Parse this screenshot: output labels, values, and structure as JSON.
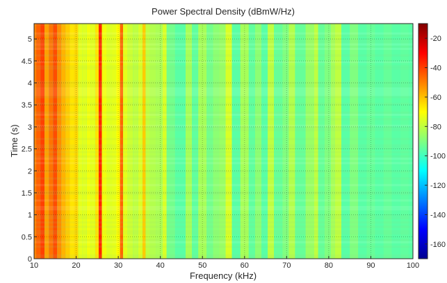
{
  "chart_data": {
    "type": "heatmap",
    "title": "Power Spectral Density (dBmW/Hz)",
    "xlabel": "Frequency (kHz)",
    "ylabel": "Time (s)",
    "xlim": [
      10,
      100
    ],
    "ylim": [
      0,
      5.35
    ],
    "xticks": [
      10,
      20,
      30,
      40,
      50,
      60,
      70,
      80,
      90,
      100
    ],
    "xtick_labels": [
      "10",
      "20",
      "30",
      "40",
      "50",
      "60",
      "70",
      "80",
      "90",
      "100"
    ],
    "yticks": [
      0,
      0.5,
      1,
      1.5,
      2,
      2.5,
      3,
      3.5,
      4,
      4.5,
      5
    ],
    "ytick_labels": [
      "0",
      "0.5",
      "1",
      "1.5",
      "2",
      "2.5",
      "3",
      "3.5",
      "4",
      "4.5",
      "5"
    ],
    "colorbar": {
      "range": [
        -170,
        -10
      ],
      "ticks": [
        -20,
        -40,
        -60,
        -80,
        -100,
        -120,
        -140,
        -160
      ],
      "tick_labels": [
        "-20",
        "-40",
        "-60",
        "-80",
        "-100",
        "-120",
        "-140",
        "-160"
      ],
      "colormap": "jet"
    },
    "grid": true,
    "background_level_db": -98,
    "frequency_profile_khz_db": [
      [
        10,
        -50
      ],
      [
        11,
        -45
      ],
      [
        12,
        -40
      ],
      [
        13,
        -55
      ],
      [
        14,
        -48
      ],
      [
        15,
        -42
      ],
      [
        16,
        -52
      ],
      [
        17,
        -58
      ],
      [
        18,
        -62
      ],
      [
        19,
        -66
      ],
      [
        20,
        -64
      ],
      [
        21,
        -74
      ],
      [
        22,
        -75
      ],
      [
        23,
        -72
      ],
      [
        24,
        -74
      ],
      [
        25,
        -66
      ],
      [
        25.7,
        -36
      ],
      [
        26.5,
        -72
      ],
      [
        28,
        -75
      ],
      [
        29,
        -74
      ],
      [
        30,
        -70
      ],
      [
        30.8,
        -46
      ],
      [
        31.5,
        -74
      ],
      [
        33,
        -78
      ],
      [
        34,
        -80
      ],
      [
        35.5,
        -76
      ],
      [
        36,
        -62
      ],
      [
        37,
        -80
      ],
      [
        38,
        -82
      ],
      [
        40,
        -83
      ],
      [
        41,
        -76
      ],
      [
        42,
        -92
      ],
      [
        45,
        -96
      ],
      [
        47,
        -84
      ],
      [
        48,
        -95
      ],
      [
        50,
        -84
      ],
      [
        52,
        -92
      ],
      [
        53,
        -88
      ],
      [
        55,
        -86
      ],
      [
        56,
        -76
      ],
      [
        58,
        -96
      ],
      [
        60,
        -84
      ],
      [
        62,
        -95
      ],
      [
        63,
        -88
      ],
      [
        65,
        -96
      ],
      [
        66,
        -80
      ],
      [
        68,
        -94
      ],
      [
        70,
        -90
      ],
      [
        71,
        -82
      ],
      [
        73,
        -94
      ],
      [
        76,
        -86
      ],
      [
        77,
        -80
      ],
      [
        78,
        -94
      ],
      [
        80,
        -90
      ],
      [
        81,
        -84
      ],
      [
        82,
        -80
      ],
      [
        84,
        -96
      ],
      [
        86,
        -90
      ],
      [
        88,
        -96
      ],
      [
        90,
        -94
      ],
      [
        92,
        -96
      ],
      [
        94,
        -94
      ],
      [
        96,
        -96
      ],
      [
        98,
        -95
      ],
      [
        100,
        -96
      ]
    ]
  }
}
